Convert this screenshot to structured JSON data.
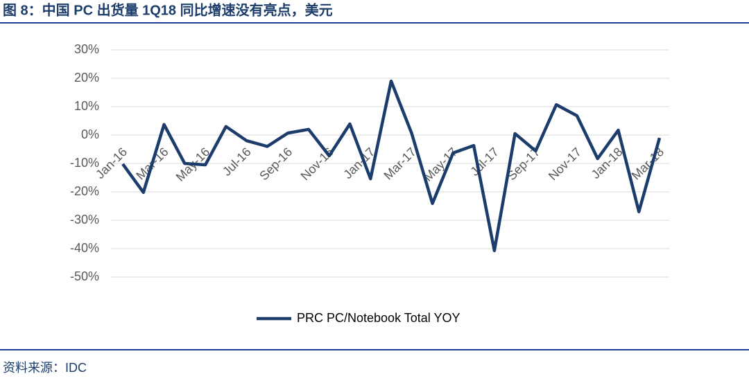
{
  "chart_data": {
    "type": "line",
    "title": "图 8：中国 PC 出货量 1Q18 同比增速没有亮点，美元",
    "source": "资料来源：IDC",
    "categories": [
      "Jan-16",
      null,
      "Mar-16",
      null,
      "May-16",
      null,
      "Jul-16",
      null,
      "Sep-16",
      null,
      "Nov-16",
      null,
      "Jan-17",
      null,
      "Mar-17",
      null,
      "May-17",
      null,
      "Jul-17",
      null,
      "Sep-17",
      null,
      "Nov-17",
      null,
      "Jan-18",
      null,
      "Mar-18"
    ],
    "series": [
      {
        "name": "PRC PC/Notebook Total YOY",
        "color": "#1c3d6b",
        "values": [
          -10.2,
          -20.2,
          3.7,
          -10,
          -10.5,
          3,
          -2,
          -4,
          0.7,
          2,
          -7.3,
          3.9,
          -15.4,
          19,
          0.5,
          -24.1,
          -6.3,
          -3.7,
          -40.7,
          0.5,
          -5.6,
          10.7,
          6.8,
          -8.3,
          1.7,
          -27,
          -1
        ]
      }
    ],
    "ylim": [
      -50,
      30
    ],
    "yticks": [
      {
        "value": -50,
        "label": "-50%"
      },
      {
        "value": -40,
        "label": "-40%"
      },
      {
        "value": -30,
        "label": "-30%"
      },
      {
        "value": -20,
        "label": "-20%"
      },
      {
        "value": -10,
        "label": "-10%"
      },
      {
        "value": 0,
        "label": "0%"
      },
      {
        "value": 10,
        "label": "10%"
      },
      {
        "value": 20,
        "label": "20%"
      },
      {
        "value": 30,
        "label": "30%"
      }
    ],
    "grid": true,
    "legend": "bottom"
  }
}
